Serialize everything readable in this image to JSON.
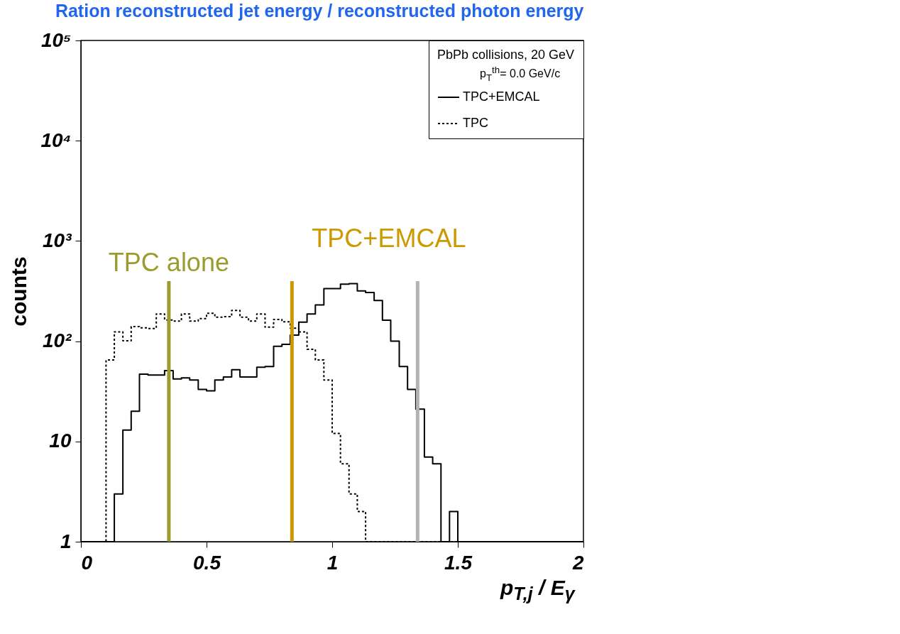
{
  "chart_data": {
    "type": "step",
    "title": "Ration reconstructed jet energy / reconstructed photon energy",
    "xlabel": "p$_{T,j}$ / E$_{γ}$",
    "ylabel": "counts",
    "legend_title": "PbPb collisions, 20 GeV",
    "legend": "top right",
    "annotations": [
      "p$_{T}$$^{th}$= 0.0 GeV/c"
    ],
    "x": [
      0,
      0.033,
      0.067,
      0.1,
      0.133,
      0.167,
      0.2,
      0.233,
      0.267,
      0.3,
      0.333,
      0.367,
      0.4,
      0.433,
      0.467,
      0.5,
      0.533,
      0.567,
      0.6,
      0.633,
      0.667,
      0.7,
      0.733,
      0.767,
      0.8,
      0.833,
      0.867,
      0.9,
      0.933,
      0.967,
      1,
      1.033,
      1.067,
      1.1,
      1.133,
      1.167,
      1.2,
      1.233,
      1.267,
      1.3,
      1.333,
      1.367,
      1.4,
      1.433,
      1.467,
      1.5,
      1.533,
      1.567,
      1.6,
      1.633,
      1.667,
      1.7,
      1.733,
      1.767,
      1.8,
      1.833,
      1.867,
      1.9,
      1.933,
      1.967,
      2
    ],
    "series": [
      {
        "name": "TPC+EMCAL",
        "color": "#000000",
        "line_style": "solid",
        "values": [
          1,
          1,
          1,
          1,
          3,
          13,
          20,
          47,
          46,
          46,
          51,
          42,
          43,
          41,
          33,
          32,
          41,
          44,
          52,
          44,
          44,
          55,
          56,
          89,
          93,
          115,
          155,
          187,
          230,
          335,
          335,
          370,
          375,
          318,
          306,
          255,
          162,
          100,
          56,
          33,
          21,
          7,
          6,
          1,
          2,
          1,
          1,
          1,
          1,
          1,
          1,
          1,
          1,
          1,
          1,
          1,
          1,
          1,
          1,
          1,
          1
        ]
      },
      {
        "name": "TPC",
        "color": "#000000",
        "line_style": "dotted",
        "values": [
          1,
          1,
          1,
          65,
          124,
          101,
          140,
          136,
          134,
          187,
          163,
          159,
          187,
          159,
          168,
          190,
          174,
          176,
          203,
          174,
          159,
          187,
          138,
          165,
          156,
          135,
          124,
          83,
          65,
          41,
          12,
          6,
          3,
          2,
          1,
          1,
          1,
          1,
          1,
          1,
          1,
          1,
          1,
          1,
          1,
          1,
          1,
          1,
          1,
          1,
          1,
          1,
          1,
          1,
          1,
          1,
          1,
          1,
          1,
          1,
          1
        ]
      }
    ],
    "log": "y",
    "xlim": [
      0,
      2
    ],
    "xticks": [
      0,
      0.5,
      1,
      1.5,
      2
    ],
    "ylim": [
      1,
      100000
    ],
    "yticks": [
      1,
      10,
      {
        "value": 100,
        "label": "10²"
      },
      {
        "value": 1000,
        "label": "10³"
      },
      {
        "value": 10000,
        "label": "10⁴"
      },
      {
        "value": 100000,
        "label": "10⁵"
      }
    ],
    "ref_lines": [
      {
        "axis": "x",
        "value": 0.35,
        "label": "TPC alone",
        "color": "#9c9c2e"
      },
      {
        "axis": "x",
        "value": 0.84,
        "label": "TPC+EMCAL",
        "color": "#cc9900"
      },
      {
        "axis": "x",
        "value": 1.34,
        "color": "#b3b3b3"
      }
    ]
  }
}
